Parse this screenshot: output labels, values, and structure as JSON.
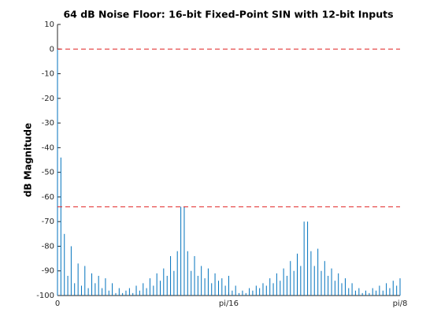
{
  "chart_data": {
    "type": "stem",
    "title": "64 dB Noise Floor: 16-bit Fixed-Point SIN with 12-bit Inputs",
    "y_label": "dB Magnitude",
    "color": "#0072bd",
    "x": [
      0,
      0.0039,
      0.0079,
      0.0118,
      0.0157,
      0.0196,
      0.0236,
      0.0275,
      0.0314,
      0.0353,
      0.0393,
      0.0432,
      0.0471,
      0.0511,
      0.055,
      0.0589,
      0.0628,
      0.0668,
      0.0707,
      0.0746,
      0.0785,
      0.0825,
      0.0864,
      0.0903,
      0.0942,
      0.0982,
      0.1021,
      0.106,
      0.11,
      0.1139,
      0.1178,
      0.1217,
      0.1257,
      0.1296,
      0.1335,
      0.1374,
      0.1414,
      0.1453,
      0.1492,
      0.1532,
      0.1571,
      0.161,
      0.1649,
      0.1689,
      0.1728,
      0.1767,
      0.1806,
      0.1846,
      0.1885,
      0.1924,
      0.1963,
      0.2003,
      0.2042,
      0.2081,
      0.2121,
      0.216,
      0.2199,
      0.2238,
      0.2278,
      0.2317,
      0.2356,
      0.2395,
      0.2435,
      0.2474,
      0.2513,
      0.2553,
      0.2592,
      0.2631,
      0.267,
      0.271,
      0.2749,
      0.2788,
      0.2827,
      0.2867,
      0.2906,
      0.2945,
      0.2985,
      0.3024,
      0.3063,
      0.3102,
      0.3142,
      0.3181,
      0.322,
      0.3259,
      0.3299,
      0.3338,
      0.3377,
      0.3416,
      0.3456,
      0.3495,
      0.3534,
      0.3574,
      0.3613,
      0.3652,
      0.3691,
      0.3731,
      0.377,
      0.3809,
      0.3848,
      0.3888,
      0.3927
    ],
    "values": [
      0,
      -44,
      -75,
      -92,
      -80,
      -95,
      -87,
      -96,
      -88,
      -97,
      -91,
      -95,
      -92,
      -97,
      -93,
      -98,
      -95,
      -99,
      -97,
      -99,
      -98,
      -97,
      -99,
      -96,
      -98,
      -95,
      -97,
      -93,
      -96,
      -91,
      -94,
      -89,
      -92,
      -84,
      -90,
      -82,
      -64,
      -64,
      -82,
      -90,
      -84,
      -92,
      -88,
      -93,
      -89,
      -95,
      -91,
      -94,
      -93,
      -96,
      -92,
      -98,
      -96,
      -99,
      -98,
      -99,
      -97,
      -98,
      -96,
      -97,
      -95,
      -96,
      -93,
      -95,
      -91,
      -94,
      -89,
      -92,
      -86,
      -90,
      -83,
      -88,
      -70,
      -70,
      -82,
      -88,
      -81,
      -90,
      -86,
      -92,
      -89,
      -94,
      -91,
      -95,
      -93,
      -97,
      -95,
      -98,
      -97,
      -99,
      -98,
      -99,
      -97,
      -98,
      -96,
      -98,
      -95,
      -97,
      -94,
      -96,
      -93
    ],
    "reference_lines": [
      0,
      -64
    ],
    "reference_color": "#e02020",
    "xlim": [
      0,
      0.3927
    ],
    "xticks": [
      0,
      {
        "value": 0.1963,
        "label": "pi/16"
      },
      {
        "value": 0.3927,
        "label": "pi/8"
      }
    ],
    "ylim": [
      -100,
      10
    ],
    "yticks": [
      10,
      0,
      -10,
      -20,
      -30,
      -40,
      -50,
      -60,
      -70,
      -80,
      -90,
      -100
    ]
  }
}
